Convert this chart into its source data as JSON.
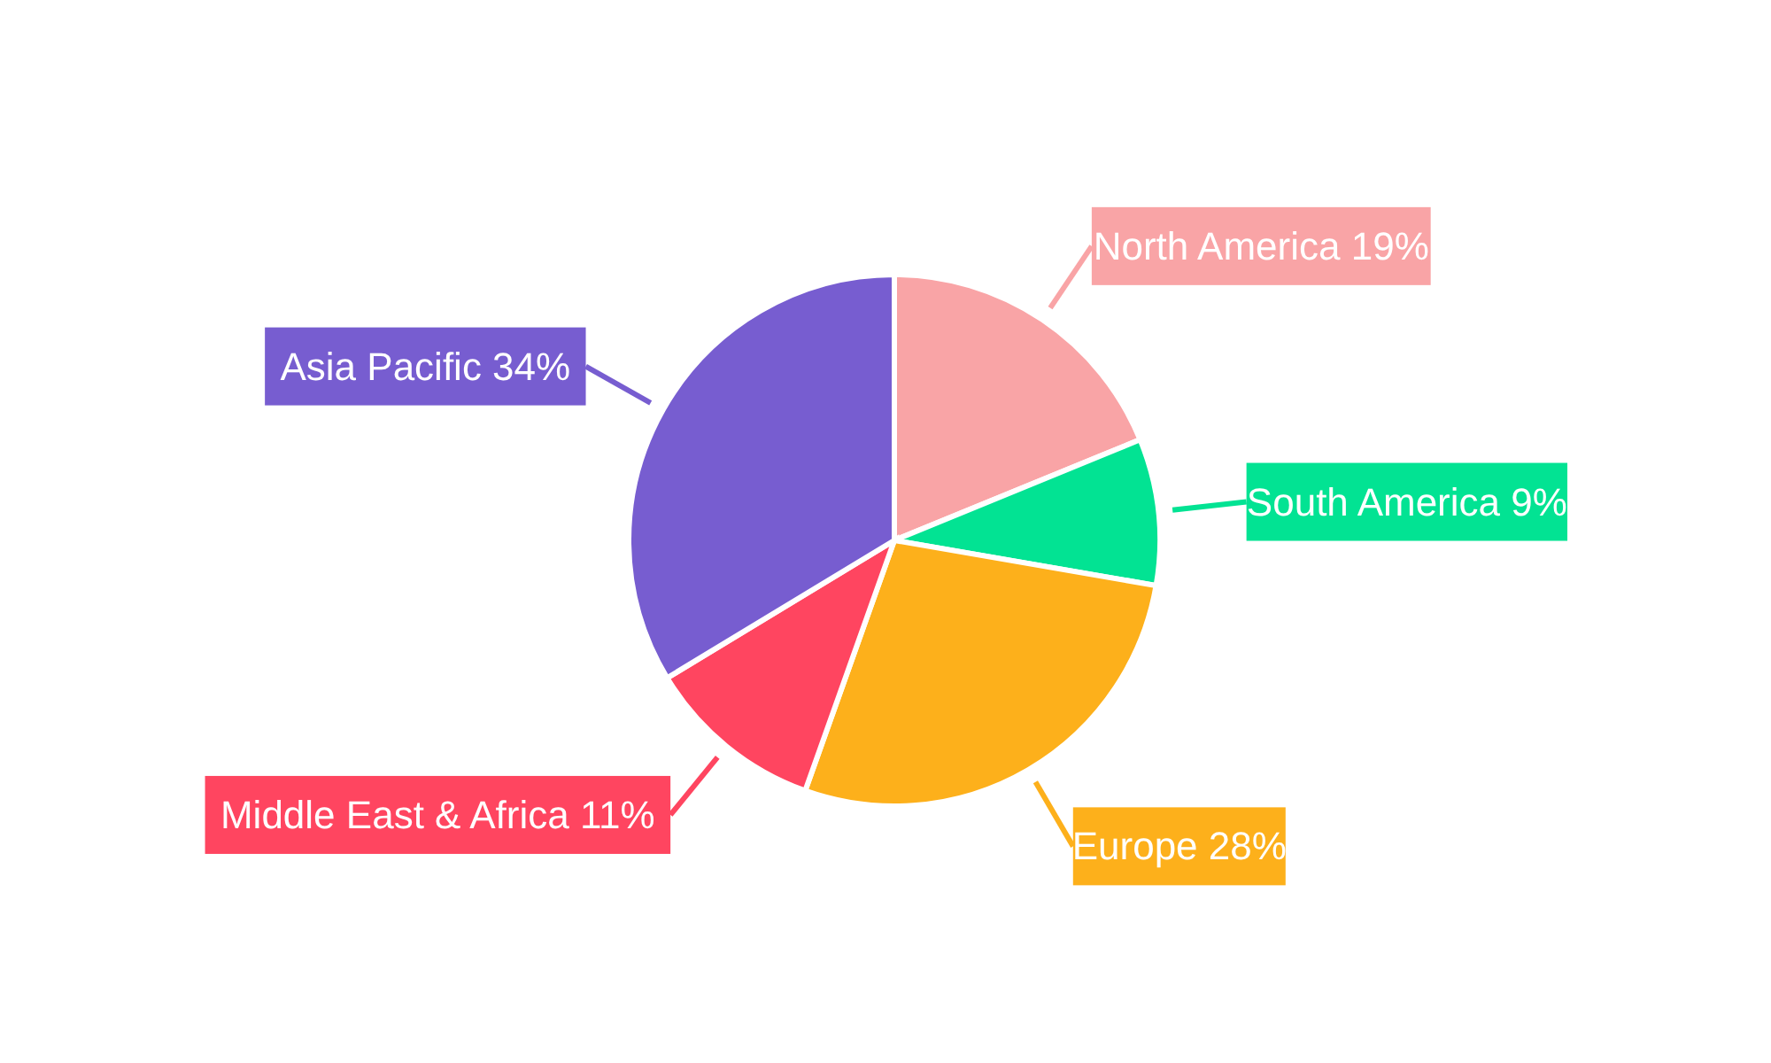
{
  "chart_data": {
    "type": "pie",
    "categories": [
      "North America",
      "South America",
      "Europe",
      "Middle East & Africa",
      "Asia Pacific"
    ],
    "values": [
      19,
      9,
      28,
      11,
      34
    ],
    "value_labels": [
      "19%",
      "9%",
      "28%",
      "11%",
      "34%"
    ],
    "colors": [
      "#f9a4a6",
      "#02e393",
      "#fdb01b",
      "#ff4560",
      "#775dd0"
    ],
    "legend": false
  }
}
